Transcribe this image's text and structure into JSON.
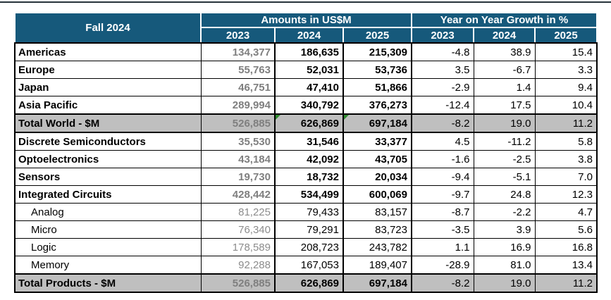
{
  "colors": {
    "top_rule": "#26323A",
    "header_bg": "#16597B",
    "header_text": "#FFFFFF",
    "total_row_bg": "#BFBFBF",
    "muted_value_text": "#7F7F7F",
    "border": "#000000",
    "flag": "#2E8B2E"
  },
  "chart_data": {
    "type": "table",
    "title": "Fall 2024",
    "column_groups": [
      "Amounts in US$M",
      "Year on Year Growth in %"
    ],
    "columns": [
      "2023",
      "2024",
      "2025",
      "2023",
      "2024",
      "2025"
    ],
    "rows": [
      {
        "label": "Americas",
        "style": "main",
        "amounts": [
          "134,377",
          "186,635",
          "215,309"
        ],
        "growth": [
          "-4.8",
          "38.9",
          "15.4"
        ],
        "flags": [
          false,
          false,
          false
        ]
      },
      {
        "label": "Europe",
        "style": "main",
        "amounts": [
          "55,763",
          "52,031",
          "53,736"
        ],
        "growth": [
          "3.5",
          "-6.7",
          "3.3"
        ],
        "flags": [
          false,
          false,
          false
        ]
      },
      {
        "label": "Japan",
        "style": "main",
        "amounts": [
          "46,751",
          "47,410",
          "51,866"
        ],
        "growth": [
          "-2.9",
          "1.4",
          "9.4"
        ],
        "flags": [
          false,
          false,
          false
        ]
      },
      {
        "label": "Asia Pacific",
        "style": "main",
        "amounts": [
          "289,994",
          "340,792",
          "376,273"
        ],
        "growth": [
          "-12.4",
          "17.5",
          "10.4"
        ],
        "flags": [
          false,
          false,
          false
        ]
      },
      {
        "label": "Total World - $M",
        "style": "total",
        "amounts": [
          "526,885",
          "626,869",
          "697,184"
        ],
        "growth": [
          "-8.2",
          "19.0",
          "11.2"
        ],
        "flags": [
          false,
          true,
          true
        ]
      },
      {
        "label": "Discrete Semiconductors",
        "style": "main",
        "amounts": [
          "35,530",
          "31,546",
          "33,377"
        ],
        "growth": [
          "4.5",
          "-11.2",
          "5.8"
        ],
        "flags": [
          false,
          false,
          false
        ]
      },
      {
        "label": "Optoelectronics",
        "style": "main",
        "amounts": [
          "43,184",
          "42,092",
          "43,705"
        ],
        "growth": [
          "-1.6",
          "-2.5",
          "3.8"
        ],
        "flags": [
          false,
          false,
          false
        ]
      },
      {
        "label": "Sensors",
        "style": "main",
        "amounts": [
          "19,730",
          "18,732",
          "20,034"
        ],
        "growth": [
          "-9.4",
          "-5.1",
          "7.0"
        ],
        "flags": [
          false,
          false,
          false
        ]
      },
      {
        "label": "Integrated Circuits",
        "style": "main",
        "amounts": [
          "428,442",
          "534,499",
          "600,069"
        ],
        "growth": [
          "-9.7",
          "24.8",
          "12.3"
        ],
        "flags": [
          false,
          false,
          false
        ]
      },
      {
        "label": "Analog",
        "style": "sub",
        "amounts": [
          "81,225",
          "79,433",
          "83,157"
        ],
        "growth": [
          "-8.7",
          "-2.2",
          "4.7"
        ],
        "flags": [
          false,
          false,
          false
        ]
      },
      {
        "label": "Micro",
        "style": "sub",
        "amounts": [
          "76,340",
          "79,291",
          "83,723"
        ],
        "growth": [
          "-3.5",
          "3.9",
          "5.6"
        ],
        "flags": [
          false,
          false,
          false
        ]
      },
      {
        "label": "Logic",
        "style": "sub",
        "amounts": [
          "178,589",
          "208,723",
          "243,782"
        ],
        "growth": [
          "1.1",
          "16.9",
          "16.8"
        ],
        "flags": [
          false,
          false,
          false
        ]
      },
      {
        "label": "Memory",
        "style": "sub",
        "amounts": [
          "92,288",
          "167,053",
          "189,407"
        ],
        "growth": [
          "-28.9",
          "81.0",
          "13.4"
        ],
        "flags": [
          false,
          false,
          false
        ]
      },
      {
        "label": "Total Products - $M",
        "style": "total",
        "amounts": [
          "526,885",
          "626,869",
          "697,184"
        ],
        "growth": [
          "-8.2",
          "19.0",
          "11.2"
        ],
        "flags": [
          false,
          false,
          false
        ]
      }
    ]
  }
}
